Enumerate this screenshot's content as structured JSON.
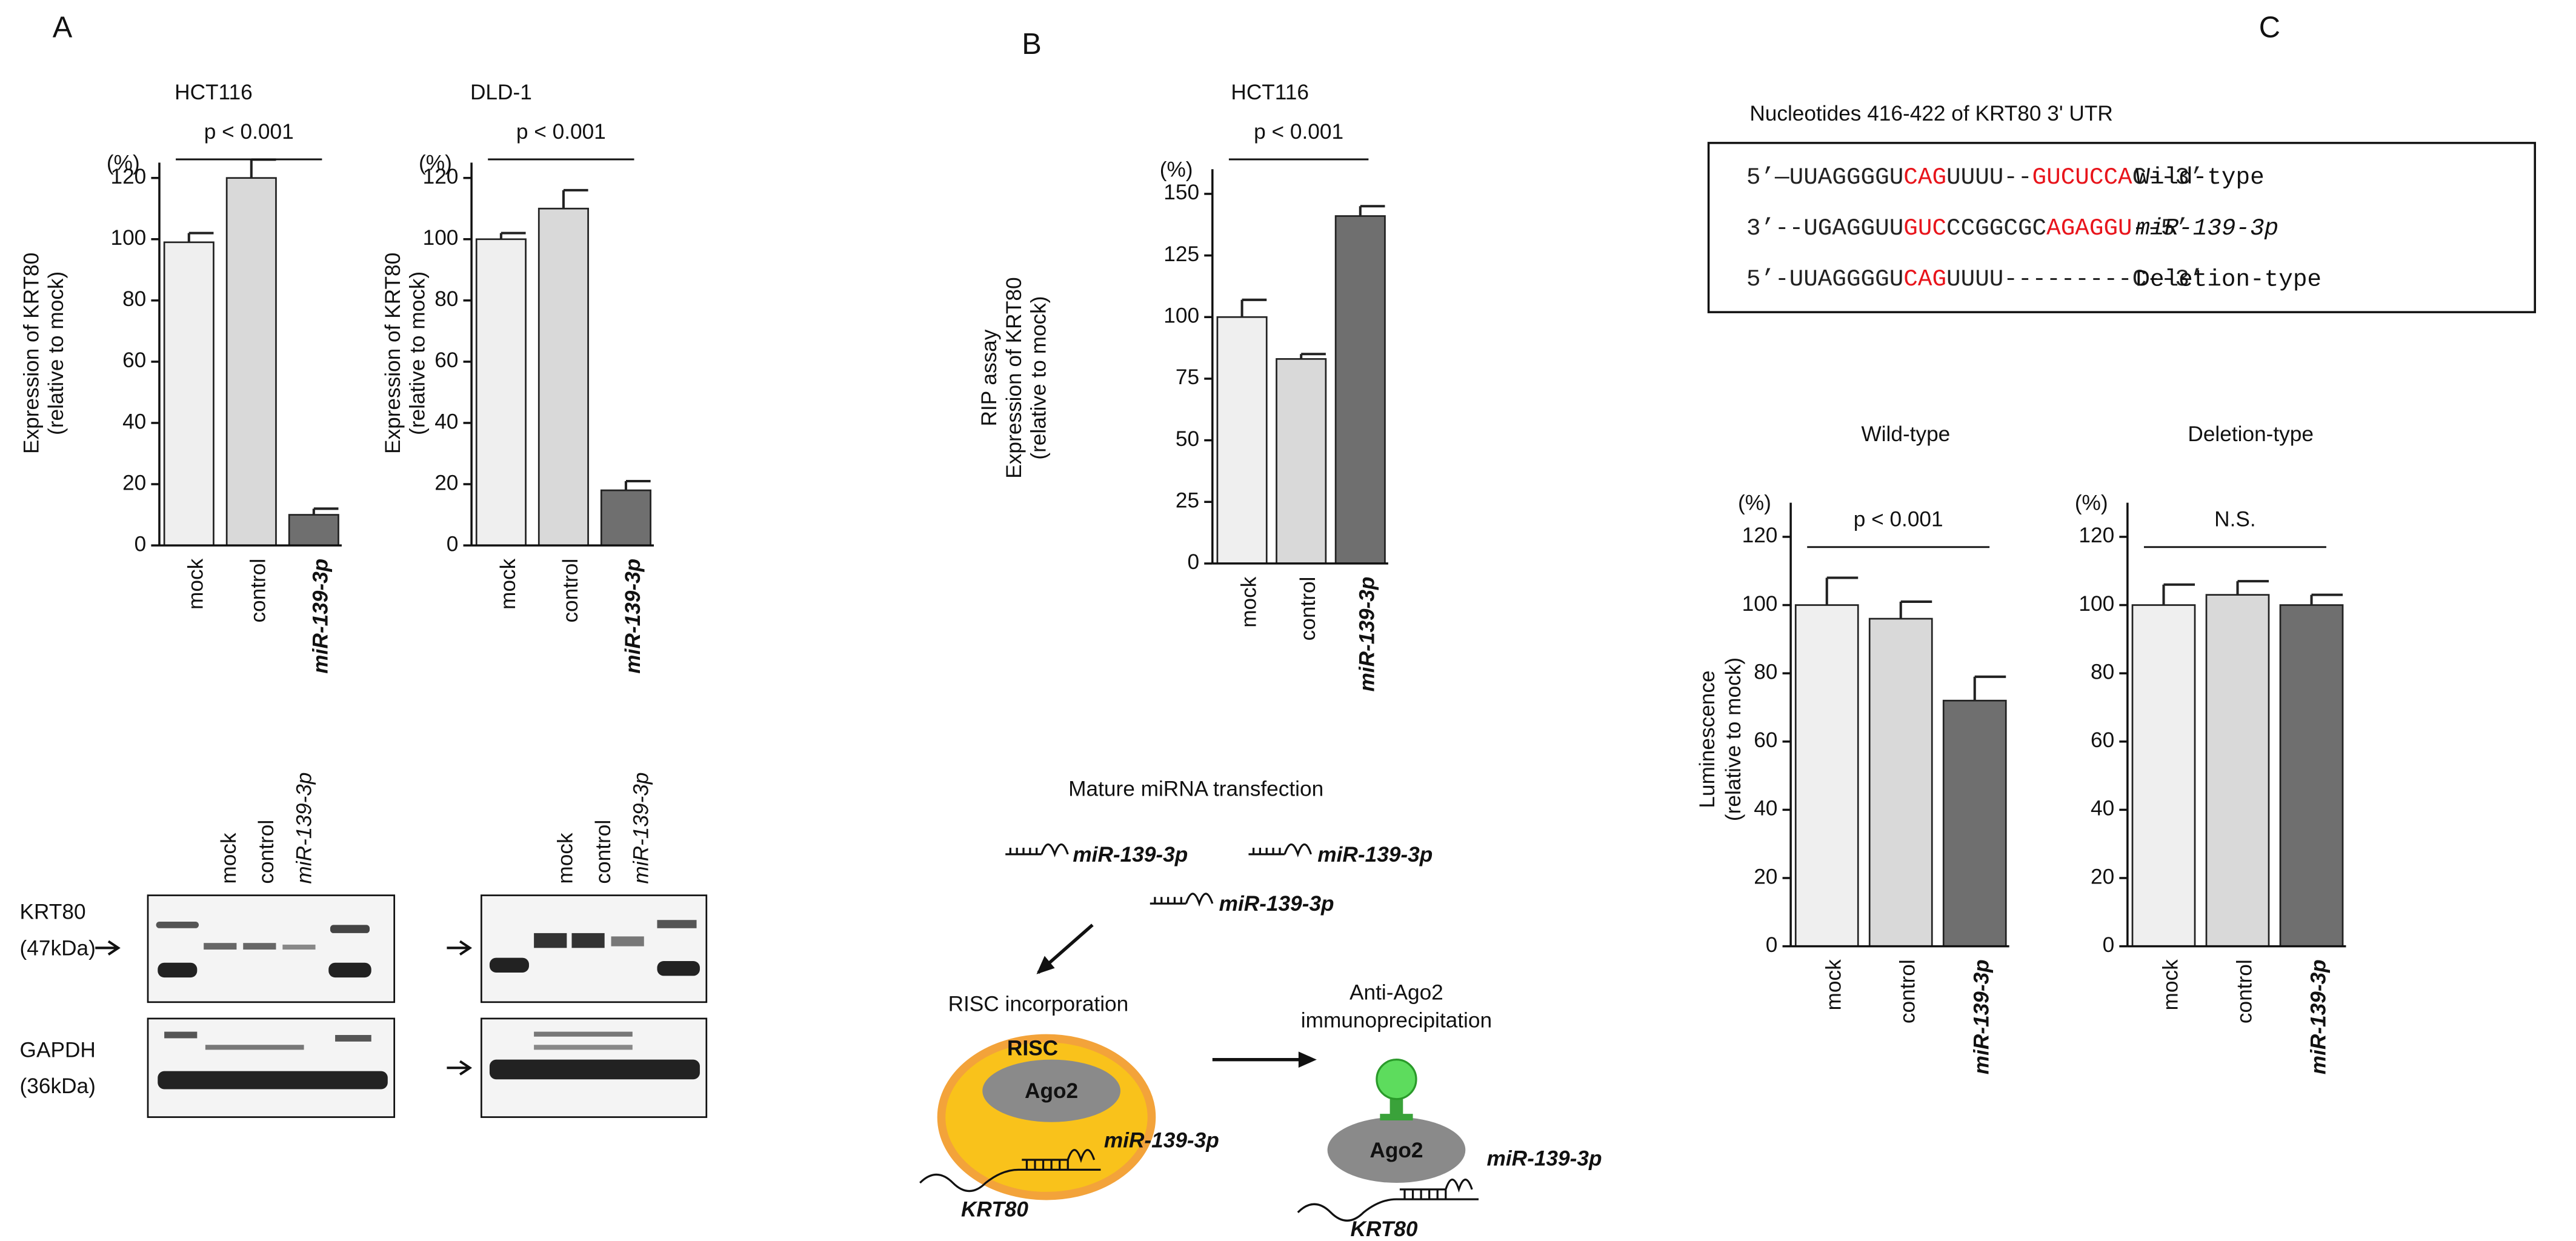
{
  "panels": [
    "A",
    "B",
    "C"
  ],
  "chart_data": [
    {
      "type": "bar",
      "title": "HCT116",
      "unit": "(%)",
      "ylabel": [
        "Expression of KRT80",
        "(relative to mock)"
      ],
      "annotation": "p < 0.001",
      "categories": [
        "mock",
        "control",
        "miR-139-3p"
      ],
      "values": [
        99,
        120,
        10
      ],
      "errors": [
        3,
        6,
        2
      ],
      "colors": [
        "#efefef",
        "#d9d9d9",
        "#6f6f6f"
      ],
      "ylim": [
        0,
        125
      ],
      "yticks": [
        0,
        20,
        40,
        60,
        80,
        100,
        120
      ]
    },
    {
      "type": "bar",
      "title": "DLD-1",
      "unit": "(%)",
      "ylabel": [
        "Expression of KRT80",
        "(relative to mock)"
      ],
      "annotation": "p < 0.001",
      "categories": [
        "mock",
        "control",
        "miR-139-3p"
      ],
      "values": [
        100,
        110,
        18
      ],
      "errors": [
        2,
        6,
        3
      ],
      "colors": [
        "#efefef",
        "#d9d9d9",
        "#6f6f6f"
      ],
      "ylim": [
        0,
        125
      ],
      "yticks": [
        0,
        20,
        40,
        60,
        80,
        100,
        120
      ]
    },
    {
      "type": "bar",
      "title": "HCT116",
      "unit": "(%)",
      "ylabel": [
        "RIP assay",
        "Expression of KRT80",
        "(relative to mock)"
      ],
      "annotation": "p < 0.001",
      "categories": [
        "mock",
        "control",
        "miR-139-3p"
      ],
      "values": [
        100,
        83,
        141
      ],
      "errors": [
        7,
        2,
        4
      ],
      "colors": [
        "#efefef",
        "#d9d9d9",
        "#6f6f6f"
      ],
      "ylim": [
        0,
        160
      ],
      "yticks": [
        0,
        25,
        50,
        75,
        100,
        125,
        150
      ]
    },
    {
      "type": "bar",
      "title": "Wild-type",
      "unit": "(%)",
      "ylabel": [
        "Luminescence",
        "(relative to mock)"
      ],
      "annotation": "p < 0.001",
      "categories": [
        "mock",
        "control",
        "miR-139-3p"
      ],
      "values": [
        100,
        96,
        72
      ],
      "errors": [
        8,
        5,
        7
      ],
      "colors": [
        "#efefef",
        "#d9d9d9",
        "#6f6f6f"
      ],
      "ylim": [
        0,
        130
      ],
      "yticks": [
        0,
        20,
        40,
        60,
        80,
        100,
        120
      ]
    },
    {
      "type": "bar",
      "title": "Deletion-type",
      "unit": "(%)",
      "ylabel": [],
      "annotation": "N.S.",
      "categories": [
        "mock",
        "control",
        "miR-139-3p"
      ],
      "values": [
        100,
        103,
        100
      ],
      "errors": [
        6,
        4,
        3
      ],
      "colors": [
        "#efefef",
        "#d9d9d9",
        "#6f6f6f"
      ],
      "ylim": [
        0,
        130
      ],
      "yticks": [
        0,
        20,
        40,
        60,
        80,
        100,
        120
      ]
    }
  ],
  "western_blot": {
    "left_lanes": [
      "mock",
      "control",
      "miR-139-3p"
    ],
    "right_lanes": [
      "mock",
      "control",
      "miR-139-3p"
    ],
    "krt80": [
      "KRT80",
      "(47kDa)"
    ],
    "gapdh": [
      "GAPDH",
      "(36kDa)"
    ]
  },
  "diagram": {
    "step1": "Mature miRNA transfection",
    "mirna": [
      "miR-139-3p",
      "miR-139-3p",
      "miR-139-3p"
    ],
    "step2": "RISC incorporation",
    "risc": "RISC",
    "ago2_a": "Ago2",
    "mirna_a": "miR-139-3p",
    "krt80_a": "KRT80",
    "step3": [
      "Anti-Ago2",
      "immunoprecipitation"
    ],
    "ago2_b": "Ago2",
    "mirna_b": "miR-139-3p",
    "krt80_b": "KRT80"
  },
  "sequence": {
    "title": "Nucleotides 416-422 of KRT80 3' UTR",
    "rows": [
      {
        "segments": [
          "5’—UUAGGGGU",
          "CAG",
          "UUUU--",
          "GUCUCCA",
          "C--3’"
        ],
        "label": "Wild-type"
      },
      {
        "segments": [
          "3’--UGAGGUU",
          "GUC",
          "CCGGCGC",
          "AGAGGU",
          "--5’"
        ],
        "label": "miR-139-3p"
      },
      {
        "segments": [
          "5’-UUAGGGGU",
          "CAG",
          "UUUU---------C--3’"
        ],
        "label": "Deletion-type"
      }
    ]
  }
}
